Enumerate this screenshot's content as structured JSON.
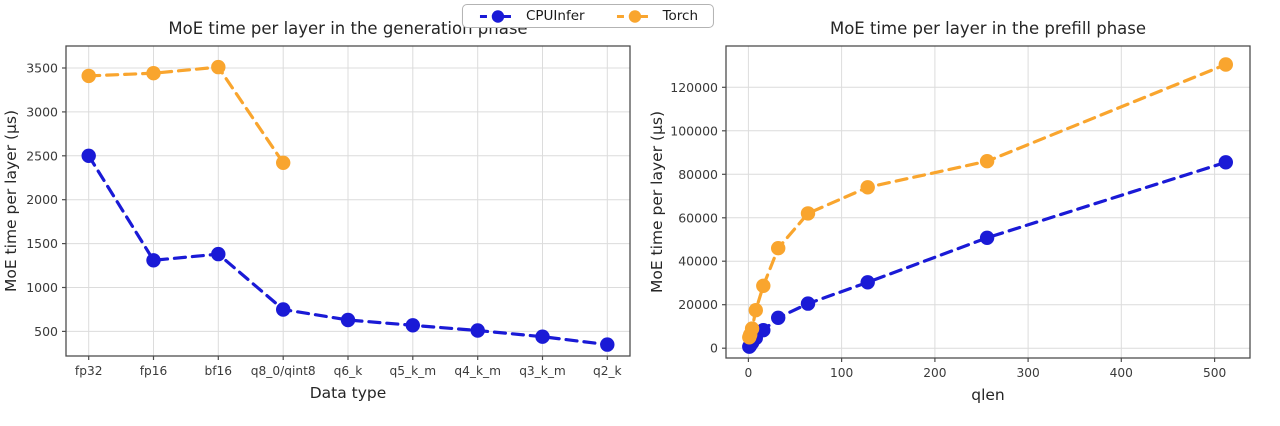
{
  "chart_data": [
    {
      "type": "line",
      "title": "MoE time per layer in the generation phase",
      "xlabel": "Data type",
      "ylabel": "MoE time per layer (µs)",
      "categories": [
        "fp32",
        "fp16",
        "bf16",
        "q8_0/qint8",
        "q6_k",
        "q5_k_m",
        "q4_k_m",
        "q3_k_m",
        "q2_k"
      ],
      "ylim": [
        220,
        3750
      ],
      "yticks": [
        500,
        1000,
        1500,
        2000,
        2500,
        3000,
        3500
      ],
      "grid": true,
      "line_style": "dashed",
      "marker": "circle",
      "series": [
        {
          "name": "CPUInfer",
          "color": "#1a1ad6",
          "values": [
            2500,
            1310,
            1380,
            750,
            630,
            570,
            510,
            440,
            350
          ]
        },
        {
          "name": "Torch",
          "color": "#f9a52e",
          "values": [
            3410,
            3440,
            3510,
            2420
          ]
        }
      ]
    },
    {
      "type": "line",
      "title": "MoE time per layer in the prefill phase",
      "xlabel": "qlen",
      "ylabel": "MoE time per layer (µs)",
      "xlim": [
        -24,
        538
      ],
      "xticks": [
        0,
        100,
        200,
        300,
        400,
        500
      ],
      "ylim": [
        -4500,
        139000
      ],
      "yticks": [
        0,
        20000,
        40000,
        60000,
        80000,
        100000,
        120000
      ],
      "grid": true,
      "line_style": "dashed",
      "marker": "circle",
      "series": [
        {
          "name": "CPUInfer",
          "color": "#1a1ad6",
          "x": [
            1,
            2,
            4,
            8,
            16,
            32,
            64,
            128,
            256,
            512
          ],
          "values": [
            700,
            1300,
            2500,
            4700,
            8300,
            14000,
            20500,
            30300,
            50800,
            85500
          ]
        },
        {
          "name": "Torch",
          "color": "#f9a52e",
          "x": [
            1,
            2,
            4,
            8,
            16,
            32,
            64,
            128,
            256,
            512
          ],
          "values": [
            5000,
            6200,
            9000,
            17500,
            28700,
            46000,
            62000,
            74000,
            86000,
            130500
          ]
        }
      ]
    }
  ],
  "legend": {
    "position": "top center"
  }
}
